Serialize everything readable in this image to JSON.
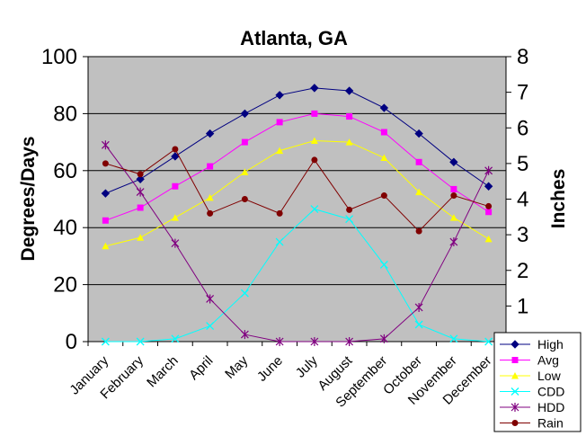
{
  "chart_data": {
    "type": "line",
    "title": "Atlanta, GA",
    "ylabel": "Degrees/Days",
    "y2label": "Inches",
    "ylim": [
      0,
      100
    ],
    "y2lim": [
      0,
      8
    ],
    "yticks": [
      "0",
      "20",
      "40",
      "60",
      "80",
      "100"
    ],
    "y2ticks": [
      "1",
      "2",
      "3",
      "4",
      "5",
      "6",
      "7",
      "8"
    ],
    "categories": [
      "January",
      "February",
      "March",
      "April",
      "May",
      "June",
      "July",
      "August",
      "September",
      "October",
      "November",
      "December"
    ],
    "grid": true,
    "plot_background": "#C0C0C0",
    "legend_position": "right",
    "series": [
      {
        "name": "High",
        "axis": "left",
        "color": "#000080",
        "marker": "diamond",
        "values": [
          52,
          57,
          65,
          73,
          80,
          86.5,
          89,
          88,
          82,
          73,
          63,
          54.5
        ]
      },
      {
        "name": "Avg",
        "axis": "left",
        "color": "#FF00FF",
        "marker": "square",
        "values": [
          42.5,
          47,
          54.5,
          61.5,
          70,
          77,
          80,
          79,
          73.5,
          63,
          53.5,
          45.5
        ]
      },
      {
        "name": "Low",
        "axis": "left",
        "color": "#FFFF00",
        "marker": "triangle",
        "values": [
          33.5,
          36.5,
          43.5,
          50.5,
          59.5,
          67,
          70.5,
          70,
          64.5,
          52.5,
          43.5,
          36
        ]
      },
      {
        "name": "CDD",
        "axis": "left",
        "color": "#00FFFF",
        "marker": "x",
        "values": [
          0,
          0,
          1,
          5.5,
          17,
          35,
          46.5,
          43,
          27,
          6,
          1,
          0
        ]
      },
      {
        "name": "HDD",
        "axis": "left",
        "color": "#800080",
        "marker": "star",
        "values": [
          69,
          52.5,
          34.5,
          15,
          2.5,
          0,
          0,
          0,
          1,
          12,
          35,
          60
        ]
      },
      {
        "name": "Rain",
        "axis": "right",
        "color": "#800000",
        "marker": "circle",
        "values": [
          5.0,
          4.7,
          5.4,
          3.6,
          4.0,
          3.6,
          5.1,
          3.7,
          4.1,
          3.1,
          4.1,
          3.8
        ]
      }
    ]
  }
}
